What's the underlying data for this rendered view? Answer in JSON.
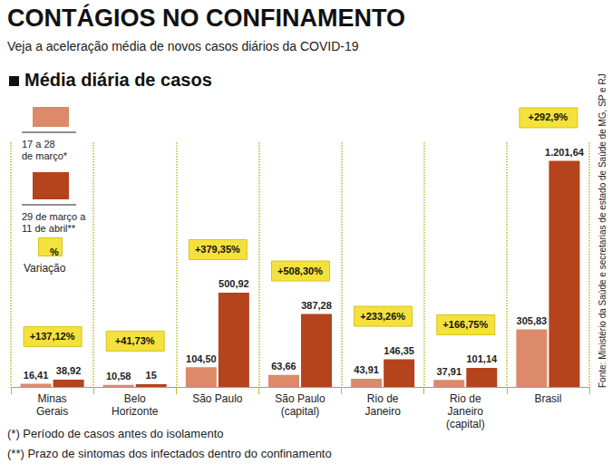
{
  "chart_data": {
    "type": "bar",
    "title": "CONTÁGIOS NO CONFINAMENTO",
    "subtitle": "Veja a aceleração média de novos casos diários da COVID-19",
    "heading": "Média diária de casos",
    "categories": [
      "Minas\nGerais",
      "Belo\nHorizonte",
      "São Paulo",
      "São Paulo\n(capital)",
      "Rio de\nJaneiro",
      "Rio de\nJaneiro\n(capital)",
      "Brasil"
    ],
    "series": [
      {
        "name": "17 a 28\nde março*",
        "color": "#dc8a6a",
        "values": [
          16.41,
          10.58,
          104.5,
          63.66,
          43.91,
          37.91,
          305.83
        ],
        "value_labels": [
          "16,41",
          "10,58",
          "104,50",
          "63,66",
          "43,91",
          "37,91",
          "305,83"
        ]
      },
      {
        "name": "29 de março a\n11 de abril**",
        "color": "#b5431c",
        "values": [
          38.92,
          15,
          500.92,
          387.28,
          146.35,
          101.14,
          1201.64
        ],
        "value_labels": [
          "38,92",
          "15",
          "500,92",
          "387,28",
          "146,35",
          "101,14",
          "1.201,64"
        ]
      }
    ],
    "variation": {
      "title": "Variação",
      "symbol": "%",
      "color": "#f4e13c",
      "values": [
        137.12,
        41.73,
        379.35,
        508.3,
        233.26,
        166.75,
        292.9
      ],
      "value_labels": [
        "+137,12%",
        "+41,73%",
        "+379,35%",
        "+508,30%",
        "+233,26%",
        "+166,75%",
        "+292,9%"
      ]
    },
    "footnotes": [
      "(*) Período de casos antes do isolamento",
      "(**) Prazo de sintomas dos infectados dentro do confinamento"
    ],
    "source": "Fonte: Ministério da Saúde e secretarias de estado de Saúde de MG, SP e RJ",
    "ylim": [
      0,
      1300
    ],
    "grid": false,
    "legend": "top-left",
    "data_labels": true,
    "tick_labels": "x"
  }
}
